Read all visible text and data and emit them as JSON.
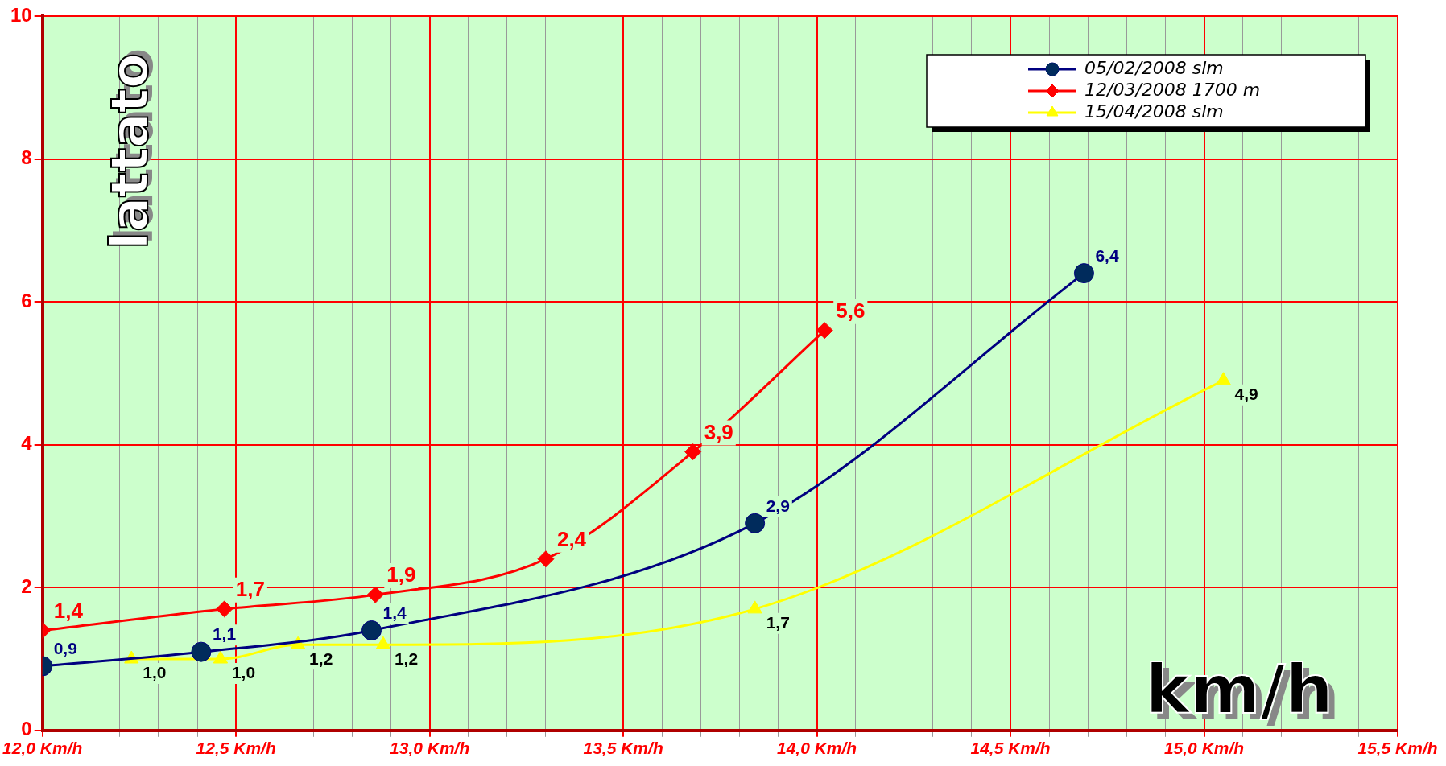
{
  "chart_data": {
    "type": "line",
    "ylabel": "lattato",
    "xlabel": "km/h",
    "xlim": [
      12,
      15.5
    ],
    "xticks": [
      {
        "value": 12,
        "label": "12,0 Km/h"
      },
      {
        "value": 12.1,
        "label": null
      },
      {
        "value": 12.2,
        "label": null
      },
      {
        "value": 12.3,
        "label": null
      },
      {
        "value": 12.4,
        "label": null
      },
      {
        "value": 12.5,
        "label": "12,5 Km/h"
      },
      {
        "value": 12.6,
        "label": null
      },
      {
        "value": 12.7,
        "label": null
      },
      {
        "value": 12.8,
        "label": null
      },
      {
        "value": 12.9,
        "label": null
      },
      {
        "value": 13,
        "label": "13,0 Km/h"
      },
      {
        "value": 13.1,
        "label": null
      },
      {
        "value": 13.2,
        "label": null
      },
      {
        "value": 13.3,
        "label": null
      },
      {
        "value": 13.4,
        "label": null
      },
      {
        "value": 13.5,
        "label": "13,5 Km/h"
      },
      {
        "value": 13.6,
        "label": null
      },
      {
        "value": 13.7,
        "label": null
      },
      {
        "value": 13.8,
        "label": null
      },
      {
        "value": 13.9,
        "label": null
      },
      {
        "value": 14,
        "label": "14,0 Km/h"
      },
      {
        "value": 14.1,
        "label": null
      },
      {
        "value": 14.2,
        "label": null
      },
      {
        "value": 14.3,
        "label": null
      },
      {
        "value": 14.4,
        "label": null
      },
      {
        "value": 14.5,
        "label": "14,5 Km/h"
      },
      {
        "value": 14.6,
        "label": null
      },
      {
        "value": 14.7,
        "label": null
      },
      {
        "value": 14.8,
        "label": null
      },
      {
        "value": 14.9,
        "label": null
      },
      {
        "value": 15,
        "label": "15,0 Km/h"
      },
      {
        "value": 15.1,
        "label": null
      },
      {
        "value": 15.2,
        "label": null
      },
      {
        "value": 15.3,
        "label": null
      },
      {
        "value": 15.4,
        "label": null
      },
      {
        "value": 15.5,
        "label": "15,5 Km/h"
      }
    ],
    "ylim": [
      0,
      10
    ],
    "yticks": [
      0,
      2,
      4,
      6,
      8,
      10
    ],
    "grid": true,
    "legend": "top right",
    "line_style": "solid",
    "series": [
      {
        "name": "05/02/2008 slm",
        "color": "#000080",
        "marker": "circle",
        "x": [
          12.0,
          12.41,
          12.85,
          13.84,
          14.69
        ],
        "values": [
          0.9,
          1.1,
          1.4,
          2.9,
          6.4
        ],
        "value_labels": [
          "0,9",
          "1,1",
          "1,4",
          "2,9",
          "6,4"
        ]
      },
      {
        "name": "12/03/2008 1700 m",
        "color": "#ff0000",
        "marker": "diamond",
        "x": [
          12.0,
          12.47,
          12.86,
          13.3,
          13.68,
          14.02
        ],
        "values": [
          1.4,
          1.7,
          1.9,
          2.4,
          3.9,
          5.6
        ],
        "value_labels": [
          "1,4",
          "1,7",
          "1,9",
          "2,4",
          "3,9",
          "5,6"
        ]
      },
      {
        "name": "15/04/2008 slm",
        "color": "#ffff00",
        "marker": "triangle",
        "x": [
          12.23,
          12.46,
          12.66,
          12.88,
          13.84,
          15.05
        ],
        "values": [
          1.0,
          1.0,
          1.2,
          1.2,
          1.7,
          4.9
        ],
        "value_labels": [
          "1,0",
          "1,0",
          "1,2",
          "1,2",
          "1,7",
          "4,9"
        ]
      }
    ]
  }
}
